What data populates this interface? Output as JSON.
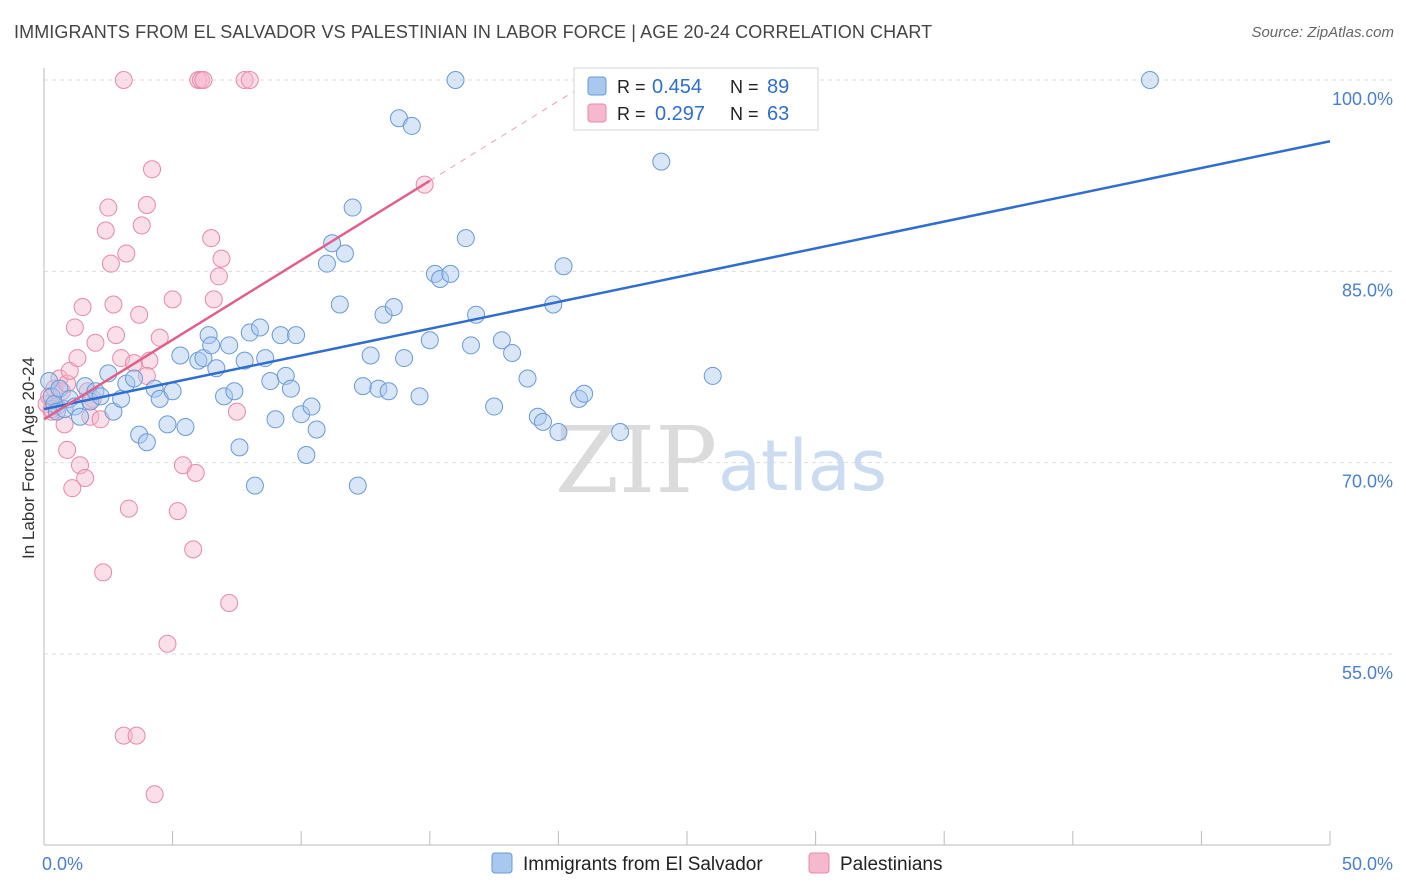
{
  "header": {
    "title": "IMMIGRANTS FROM EL SALVADOR VS PALESTINIAN IN LABOR FORCE | AGE 20-24 CORRELATION CHART",
    "source": "Source: ZipAtlas.com"
  },
  "watermark": {
    "zip": "ZIP",
    "atlas": "atlas"
  },
  "colors": {
    "blue_fill": "#a9c8f0",
    "blue_stroke": "#6a9ad8",
    "blue_line": "#2f6ecf",
    "pink_fill": "#f6b8cc",
    "pink_stroke": "#e889a8",
    "pink_line": "#e0608b",
    "grid": "#dddddd",
    "axis_text": "#4a7fd0"
  },
  "chart_data": {
    "type": "scatter",
    "xlabel": "",
    "ylabel": "In Labor Force | Age 20-24",
    "xlim": [
      0,
      50
    ],
    "ylim": [
      42,
      102
    ],
    "x_tick_labels": [
      {
        "value": 0,
        "label": "0.0%"
      },
      {
        "value": 50,
        "label": "50.0%"
      }
    ],
    "y_tick_labels": [
      {
        "value": 55,
        "label": "55.0%"
      },
      {
        "value": 70,
        "label": "70.0%"
      },
      {
        "value": 85,
        "label": "85.0%"
      },
      {
        "value": 100,
        "label": "100.0%"
      }
    ],
    "legend": {
      "position": "top-center",
      "entries": [
        {
          "series": "Immigrants from El Salvador",
          "r_label": "R =",
          "r_value": "0.454",
          "n_label": "N =",
          "n_value": "89"
        },
        {
          "series": "Palestinians",
          "r_label": "R =",
          "r_value": "0.297",
          "n_label": "N =",
          "n_value": "63"
        }
      ]
    },
    "series": [
      {
        "name": "Immigrants from El Salvador",
        "color": "blue",
        "trend": {
          "x": [
            0,
            50
          ],
          "y": [
            74.2,
            95.2
          ]
        },
        "points": [
          [
            0.2,
            76.4
          ],
          [
            0.3,
            75.2
          ],
          [
            0.4,
            74.6
          ],
          [
            0.5,
            74.0
          ],
          [
            0.6,
            75.8
          ],
          [
            0.8,
            74.2
          ],
          [
            1.0,
            75.0
          ],
          [
            1.2,
            74.4
          ],
          [
            1.4,
            73.6
          ],
          [
            1.6,
            76.0
          ],
          [
            1.8,
            74.8
          ],
          [
            2.0,
            75.6
          ],
          [
            2.2,
            75.2
          ],
          [
            2.5,
            77.0
          ],
          [
            2.7,
            74.0
          ],
          [
            3.0,
            75.0
          ],
          [
            3.2,
            76.2
          ],
          [
            3.5,
            76.6
          ],
          [
            3.7,
            72.2
          ],
          [
            4.0,
            71.6
          ],
          [
            4.3,
            75.8
          ],
          [
            4.5,
            75.0
          ],
          [
            4.8,
            73.0
          ],
          [
            5.0,
            75.6
          ],
          [
            5.3,
            78.4
          ],
          [
            5.5,
            72.8
          ],
          [
            6.0,
            78.0
          ],
          [
            6.2,
            78.2
          ],
          [
            6.4,
            80.0
          ],
          [
            6.5,
            79.2
          ],
          [
            6.7,
            77.4
          ],
          [
            7.0,
            75.2
          ],
          [
            7.2,
            79.2
          ],
          [
            7.4,
            75.6
          ],
          [
            7.6,
            71.2
          ],
          [
            7.8,
            78.0
          ],
          [
            8.0,
            80.2
          ],
          [
            8.2,
            68.2
          ],
          [
            8.4,
            80.6
          ],
          [
            8.6,
            78.2
          ],
          [
            8.8,
            76.4
          ],
          [
            9.0,
            73.4
          ],
          [
            9.2,
            80.0
          ],
          [
            9.4,
            76.8
          ],
          [
            9.6,
            75.8
          ],
          [
            9.8,
            80.0
          ],
          [
            10.0,
            73.8
          ],
          [
            10.2,
            70.6
          ],
          [
            10.4,
            74.4
          ],
          [
            10.6,
            72.6
          ],
          [
            11.0,
            85.6
          ],
          [
            11.2,
            87.2
          ],
          [
            11.5,
            82.4
          ],
          [
            11.7,
            86.4
          ],
          [
            12.0,
            90.0
          ],
          [
            12.2,
            68.2
          ],
          [
            12.4,
            76.0
          ],
          [
            12.7,
            78.4
          ],
          [
            13.0,
            75.8
          ],
          [
            13.2,
            81.6
          ],
          [
            13.4,
            75.6
          ],
          [
            13.6,
            82.2
          ],
          [
            13.8,
            97.0
          ],
          [
            14.0,
            78.2
          ],
          [
            14.3,
            96.4
          ],
          [
            14.6,
            75.2
          ],
          [
            15.0,
            79.6
          ],
          [
            15.2,
            84.8
          ],
          [
            15.4,
            84.4
          ],
          [
            15.8,
            84.8
          ],
          [
            16.0,
            100.0
          ],
          [
            16.4,
            87.6
          ],
          [
            16.6,
            79.2
          ],
          [
            16.8,
            81.6
          ],
          [
            17.5,
            74.4
          ],
          [
            17.8,
            79.6
          ],
          [
            18.2,
            78.6
          ],
          [
            18.8,
            76.6
          ],
          [
            19.2,
            73.6
          ],
          [
            19.4,
            73.2
          ],
          [
            19.8,
            82.4
          ],
          [
            20.0,
            72.4
          ],
          [
            20.2,
            85.4
          ],
          [
            20.8,
            75.0
          ],
          [
            21.0,
            75.4
          ],
          [
            22.4,
            72.4
          ],
          [
            24.0,
            93.6
          ],
          [
            26.0,
            76.8
          ],
          [
            43.0,
            100.0
          ]
        ]
      },
      {
        "name": "Palestinians",
        "color": "pink",
        "trend": {
          "x": [
            0,
            15
          ],
          "y": [
            73.4,
            92.1
          ]
        },
        "trend_extension": {
          "x": [
            15,
            21
          ],
          "y": [
            92.1,
            99.6
          ]
        },
        "points": [
          [
            0.1,
            74.6
          ],
          [
            0.2,
            75.2
          ],
          [
            0.3,
            74.0
          ],
          [
            0.4,
            75.8
          ],
          [
            0.5,
            74.4
          ],
          [
            0.6,
            76.6
          ],
          [
            0.7,
            75.6
          ],
          [
            0.8,
            73.0
          ],
          [
            0.9,
            76.2
          ],
          [
            1.0,
            77.2
          ],
          [
            1.1,
            68.0
          ],
          [
            1.2,
            80.6
          ],
          [
            1.3,
            78.2
          ],
          [
            1.4,
            69.8
          ],
          [
            1.5,
            82.2
          ],
          [
            1.6,
            68.8
          ],
          [
            1.7,
            75.6
          ],
          [
            1.8,
            73.6
          ],
          [
            1.9,
            75.0
          ],
          [
            2.0,
            79.4
          ],
          [
            2.2,
            73.4
          ],
          [
            2.3,
            61.4
          ],
          [
            2.4,
            88.2
          ],
          [
            2.5,
            90.0
          ],
          [
            2.6,
            85.6
          ],
          [
            2.7,
            82.4
          ],
          [
            2.8,
            80.0
          ],
          [
            3.0,
            78.2
          ],
          [
            3.1,
            48.6
          ],
          [
            3.2,
            86.4
          ],
          [
            3.3,
            66.4
          ],
          [
            3.5,
            77.8
          ],
          [
            3.6,
            48.6
          ],
          [
            3.7,
            81.6
          ],
          [
            3.8,
            88.6
          ],
          [
            4.0,
            90.2
          ],
          [
            4.1,
            78.0
          ],
          [
            4.2,
            93.0
          ],
          [
            4.3,
            44.0
          ],
          [
            4.5,
            79.8
          ],
          [
            4.8,
            55.8
          ],
          [
            5.0,
            82.8
          ],
          [
            5.2,
            66.2
          ],
          [
            5.4,
            69.8
          ],
          [
            5.8,
            63.2
          ],
          [
            5.9,
            69.2
          ],
          [
            6.0,
            100.0
          ],
          [
            6.1,
            100.0
          ],
          [
            6.2,
            100.0
          ],
          [
            6.5,
            87.6
          ],
          [
            6.6,
            82.8
          ],
          [
            6.8,
            84.6
          ],
          [
            6.9,
            86.0
          ],
          [
            7.2,
            59.0
          ],
          [
            7.5,
            74.0
          ],
          [
            7.8,
            100.0
          ],
          [
            8.0,
            100.0
          ],
          [
            14.8,
            91.8
          ],
          [
            3.1,
            100.0
          ],
          [
            0.3,
            74.2
          ],
          [
            1.8,
            74.8
          ],
          [
            4.0,
            76.8
          ],
          [
            0.9,
            71.0
          ]
        ]
      }
    ]
  }
}
